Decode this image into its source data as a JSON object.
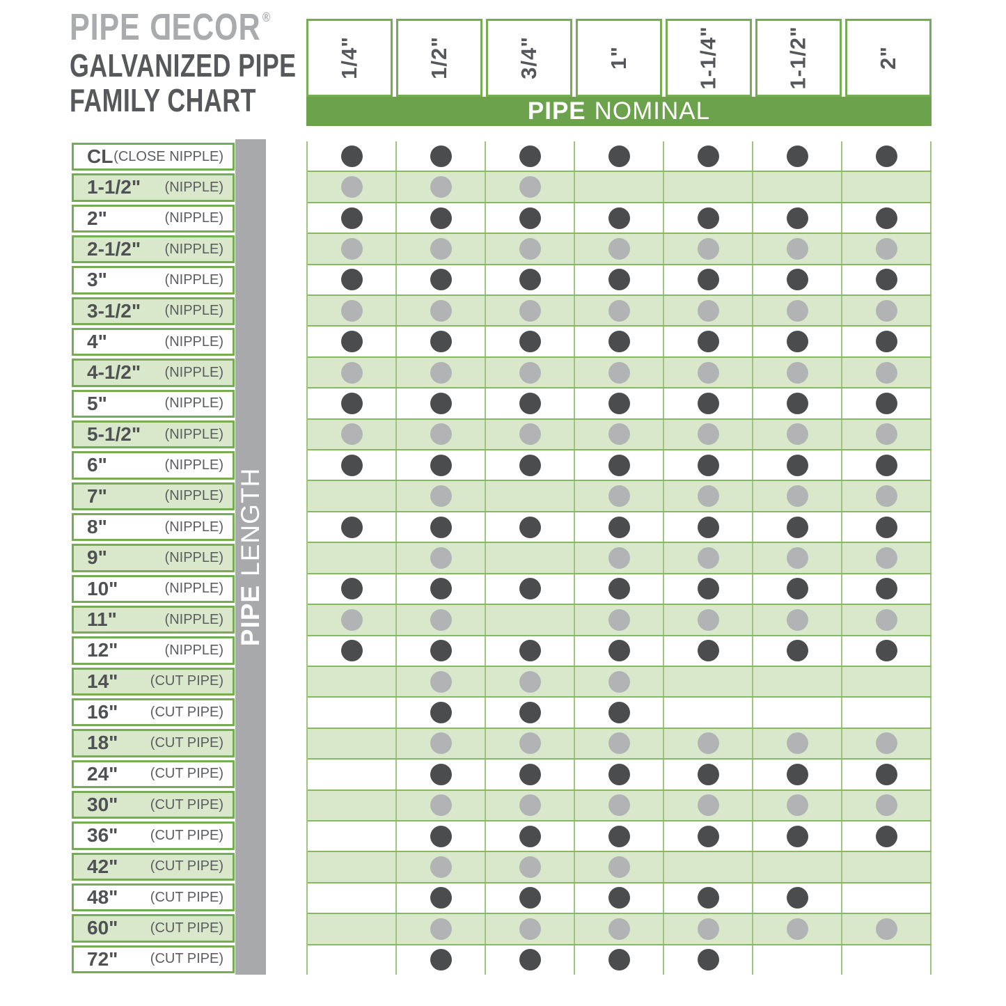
{
  "logo": {
    "part1": "PIPE ",
    "flipped_letter": "D",
    "part2": "ECOR",
    "registered": "®"
  },
  "title": {
    "line1": "GALVANIZED PIPE",
    "line2": "FAMILY CHART"
  },
  "nominal_band": {
    "bold": "PIPE",
    "rest": "NOMINAL"
  },
  "length_band": {
    "bold": "PIPE",
    "rest": "LENGTH"
  },
  "colors": {
    "band_green": "#6ca24c",
    "border_green": "#76ad52",
    "row_green": "#d9e8ca",
    "stripe_border_green": "#86ba60",
    "cell_separator_green": "#9cc57d",
    "gray_band": "#a8a9ab",
    "dark_dot": "#4b4c4e",
    "light_dot": "#b2b3b5",
    "logo_gray": "#a9abad",
    "text_dark": "#56585b"
  },
  "chart_data": {
    "type": "table",
    "title": "PIPE DECOR GALVANIZED PIPE FAMILY CHART",
    "column_axis_label": "PIPE NOMINAL",
    "row_axis_label": "PIPE LENGTH",
    "columns": [
      "1/4\"",
      "1/2\"",
      "3/4\"",
      "1\"",
      "1-1/4\"",
      "1-1/2\"",
      "2\""
    ],
    "rows": [
      {
        "length": "CL",
        "kind": "(CLOSE NIPPLE)",
        "dots": [
          1,
          1,
          1,
          1,
          1,
          1,
          1
        ]
      },
      {
        "length": "1-1/2\"",
        "kind": "(NIPPLE)",
        "dots": [
          1,
          1,
          1,
          0,
          0,
          0,
          0
        ]
      },
      {
        "length": "2\"",
        "kind": "(NIPPLE)",
        "dots": [
          1,
          1,
          1,
          1,
          1,
          1,
          1
        ]
      },
      {
        "length": "2-1/2\"",
        "kind": "(NIPPLE)",
        "dots": [
          1,
          1,
          1,
          1,
          1,
          1,
          1
        ]
      },
      {
        "length": "3\"",
        "kind": "(NIPPLE)",
        "dots": [
          1,
          1,
          1,
          1,
          1,
          1,
          1
        ]
      },
      {
        "length": "3-1/2\"",
        "kind": "(NIPPLE)",
        "dots": [
          1,
          1,
          1,
          1,
          1,
          1,
          1
        ]
      },
      {
        "length": "4\"",
        "kind": "(NIPPLE)",
        "dots": [
          1,
          1,
          1,
          1,
          1,
          1,
          1
        ]
      },
      {
        "length": "4-1/2\"",
        "kind": "(NIPPLE)",
        "dots": [
          1,
          1,
          1,
          1,
          1,
          1,
          1
        ]
      },
      {
        "length": "5\"",
        "kind": "(NIPPLE)",
        "dots": [
          1,
          1,
          1,
          1,
          1,
          1,
          1
        ]
      },
      {
        "length": "5-1/2\"",
        "kind": "(NIPPLE)",
        "dots": [
          1,
          1,
          1,
          1,
          1,
          1,
          1
        ]
      },
      {
        "length": "6\"",
        "kind": "(NIPPLE)",
        "dots": [
          1,
          1,
          1,
          1,
          1,
          1,
          1
        ]
      },
      {
        "length": "7\"",
        "kind": "(NIPPLE)",
        "dots": [
          0,
          1,
          0,
          1,
          1,
          1,
          1
        ]
      },
      {
        "length": "8\"",
        "kind": "(NIPPLE)",
        "dots": [
          1,
          1,
          1,
          1,
          1,
          1,
          1
        ]
      },
      {
        "length": "9\"",
        "kind": "(NIPPLE)",
        "dots": [
          0,
          1,
          0,
          1,
          1,
          1,
          1
        ]
      },
      {
        "length": "10\"",
        "kind": "(NIPPLE)",
        "dots": [
          1,
          1,
          1,
          1,
          1,
          1,
          1
        ]
      },
      {
        "length": "11\"",
        "kind": "(NIPPLE)",
        "dots": [
          1,
          1,
          0,
          1,
          1,
          1,
          1
        ]
      },
      {
        "length": "12\"",
        "kind": "(NIPPLE)",
        "dots": [
          1,
          1,
          1,
          1,
          1,
          1,
          1
        ]
      },
      {
        "length": "14\"",
        "kind": "(CUT PIPE)",
        "dots": [
          0,
          1,
          1,
          1,
          0,
          0,
          0
        ]
      },
      {
        "length": "16\"",
        "kind": "(CUT PIPE)",
        "dots": [
          0,
          1,
          1,
          1,
          0,
          0,
          0
        ]
      },
      {
        "length": "18\"",
        "kind": "(CUT PIPE)",
        "dots": [
          0,
          1,
          1,
          1,
          1,
          1,
          1
        ]
      },
      {
        "length": "24\"",
        "kind": "(CUT PIPE)",
        "dots": [
          0,
          1,
          1,
          1,
          1,
          1,
          1
        ]
      },
      {
        "length": "30\"",
        "kind": "(CUT PIPE)",
        "dots": [
          0,
          1,
          1,
          1,
          1,
          1,
          1
        ]
      },
      {
        "length": "36\"",
        "kind": "(CUT PIPE)",
        "dots": [
          0,
          1,
          1,
          1,
          1,
          1,
          1
        ]
      },
      {
        "length": "42\"",
        "kind": "(CUT PIPE)",
        "dots": [
          0,
          1,
          1,
          1,
          0,
          0,
          0
        ]
      },
      {
        "length": "48\"",
        "kind": "(CUT PIPE)",
        "dots": [
          0,
          1,
          1,
          1,
          1,
          1,
          0
        ]
      },
      {
        "length": "60\"",
        "kind": "(CUT PIPE)",
        "dots": [
          0,
          1,
          1,
          1,
          1,
          1,
          1
        ]
      },
      {
        "length": "72\"",
        "kind": "(CUT PIPE)",
        "dots": [
          0,
          1,
          1,
          1,
          1,
          0,
          0
        ]
      }
    ]
  }
}
